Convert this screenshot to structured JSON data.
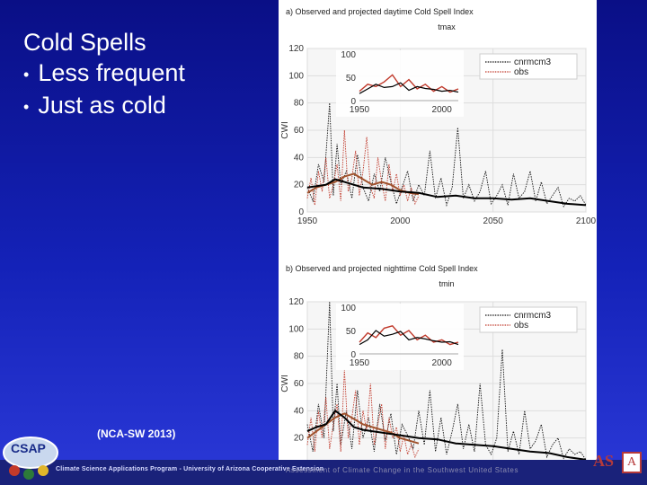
{
  "slide": {
    "title": "Cold Spells",
    "bullets": [
      "Less frequent",
      "Just as cold"
    ],
    "bullet_glyph": "•",
    "citation": "(NCA-SW 2013)",
    "footer_text": "Climate Science Applications Program - University of Arizona Cooperative Extension",
    "footer_overlay": "Assessment of Climate Change in the Southwest United States",
    "logo_text": "CSAP",
    "corner_logo_text": "AS",
    "corner_logo_box": "A"
  },
  "colors": {
    "background_top": "#0a0f86",
    "background_bottom": "#2b39d8",
    "model_series": "#111111",
    "obs_series": "#c0392b",
    "smooth_model": "#000000",
    "smooth_obs": "#a0522d"
  },
  "chart_data": [
    {
      "type": "line",
      "title": "a) Observed and projected daytime Cold Spell Index",
      "subtitle": "tmax",
      "ylabel": "CWI",
      "xlabel": "",
      "xlim": [
        1950,
        2100
      ],
      "ylim": [
        0,
        120
      ],
      "xticks": [
        1950,
        2000,
        2050,
        2100
      ],
      "yticks": [
        0,
        20,
        40,
        60,
        80,
        100,
        120
      ],
      "grid": true,
      "legend": "top-right",
      "series": [
        {
          "name": "cnrmcm3",
          "style": "dotted",
          "x": [
            1950,
            1953,
            1956,
            1959,
            1962,
            1964,
            1966,
            1968,
            1971,
            1974,
            1977,
            1980,
            1983,
            1986,
            1989,
            1992,
            1995,
            1998,
            2001,
            2004,
            2007,
            2010,
            2013,
            2016,
            2019,
            2022,
            2025,
            2028,
            2031,
            2034,
            2037,
            2040,
            2043,
            2046,
            2049,
            2052,
            2055,
            2058,
            2061,
            2064,
            2067,
            2070,
            2073,
            2076,
            2079,
            2082,
            2085,
            2088,
            2091,
            2094,
            2097,
            2100
          ],
          "y": [
            18,
            8,
            35,
            22,
            80,
            12,
            50,
            20,
            30,
            10,
            42,
            18,
            8,
            28,
            15,
            40,
            22,
            6,
            18,
            30,
            8,
            20,
            12,
            45,
            10,
            25,
            5,
            18,
            62,
            10,
            20,
            8,
            15,
            30,
            6,
            12,
            20,
            5,
            28,
            10,
            15,
            30,
            8,
            22,
            6,
            12,
            18,
            4,
            10,
            8,
            12,
            5
          ]
        },
        {
          "name": "obs",
          "style": "dotted",
          "x": [
            1950,
            1952,
            1954,
            1956,
            1958,
            1960,
            1962,
            1964,
            1966,
            1968,
            1970,
            1972,
            1974,
            1976,
            1978,
            1980,
            1982,
            1984,
            1986,
            1988,
            1990,
            1992,
            1994,
            1996,
            1998,
            2000,
            2002,
            2004,
            2006,
            2008,
            2010
          ],
          "y": [
            10,
            25,
            5,
            30,
            15,
            40,
            10,
            20,
            35,
            8,
            60,
            15,
            25,
            45,
            12,
            30,
            55,
            18,
            10,
            40,
            22,
            8,
            35,
            15,
            28,
            12,
            20,
            8,
            18,
            6,
            12
          ]
        }
      ],
      "smooth": [
        {
          "name": "cnrmcm3-smooth",
          "x": [
            1950,
            1960,
            1965,
            1970,
            1975,
            1980,
            1990,
            2000,
            2010,
            2020,
            2030,
            2040,
            2050,
            2060,
            2070,
            2080,
            2090,
            2100
          ],
          "y": [
            18,
            20,
            24,
            22,
            20,
            18,
            17,
            15,
            14,
            11,
            12,
            10,
            10,
            9,
            10,
            8,
            6,
            5
          ]
        },
        {
          "name": "obs-smooth",
          "x": [
            1950,
            1955,
            1960,
            1965,
            1970,
            1975,
            1980,
            1985,
            1990,
            1995,
            2000,
            2005,
            2010
          ],
          "y": [
            14,
            18,
            20,
            22,
            26,
            28,
            24,
            20,
            22,
            20,
            16,
            14,
            13
          ]
        }
      ],
      "inset": {
        "xlim": [
          1950,
          2010
        ],
        "ylim": [
          0,
          100
        ],
        "xticks": [
          1950,
          2000
        ],
        "yticks": [
          0,
          50,
          100
        ],
        "obs_x": [
          1950,
          1955,
          1960,
          1965,
          1970,
          1975,
          1980,
          1985,
          1990,
          1995,
          2000,
          2005,
          2010
        ],
        "obs_y": [
          20,
          35,
          30,
          40,
          55,
          30,
          45,
          25,
          35,
          20,
          30,
          18,
          25
        ],
        "model_x": [
          1950,
          1955,
          1960,
          1965,
          1970,
          1975,
          1980,
          1985,
          1990,
          1995,
          2000,
          2005,
          2010
        ],
        "model_y": [
          15,
          25,
          35,
          28,
          30,
          38,
          22,
          30,
          26,
          24,
          20,
          22,
          18
        ]
      }
    },
    {
      "type": "line",
      "title": "b) Observed and projected nighttime Cold Spell Index",
      "subtitle": "tmin",
      "ylabel": "CWI",
      "xlabel": "",
      "xlim": [
        1950,
        2100
      ],
      "ylim": [
        0,
        120
      ],
      "xticks": [
        1950,
        2000,
        2050,
        2100
      ],
      "yticks": [
        0,
        20,
        40,
        60,
        80,
        100,
        120
      ],
      "grid": true,
      "legend": "top-right",
      "series": [
        {
          "name": "cnrmcm3",
          "style": "dotted",
          "x": [
            1950,
            1953,
            1956,
            1959,
            1962,
            1964,
            1966,
            1968,
            1971,
            1974,
            1977,
            1980,
            1983,
            1986,
            1989,
            1992,
            1995,
            1998,
            2001,
            2004,
            2007,
            2010,
            2013,
            2016,
            2019,
            2022,
            2025,
            2028,
            2031,
            2034,
            2037,
            2040,
            2043,
            2046,
            2049,
            2052,
            2055,
            2058,
            2061,
            2064,
            2067,
            2070,
            2073,
            2076,
            2079,
            2082,
            2085,
            2088,
            2091,
            2094,
            2097,
            2100
          ],
          "y": [
            30,
            10,
            45,
            20,
            120,
            25,
            60,
            15,
            40,
            12,
            55,
            20,
            35,
            10,
            45,
            18,
            38,
            8,
            30,
            22,
            12,
            40,
            15,
            55,
            10,
            35,
            8,
            25,
            45,
            12,
            30,
            10,
            60,
            15,
            8,
            20,
            85,
            10,
            25,
            8,
            40,
            12,
            18,
            30,
            6,
            15,
            20,
            5,
            12,
            8,
            10,
            4
          ]
        },
        {
          "name": "obs",
          "style": "dotted",
          "x": [
            1950,
            1952,
            1954,
            1956,
            1958,
            1960,
            1962,
            1964,
            1966,
            1968,
            1970,
            1972,
            1974,
            1976,
            1978,
            1980,
            1982,
            1984,
            1986,
            1988,
            1990,
            1992,
            1994,
            1996,
            1998,
            2000,
            2002,
            2004,
            2006,
            2008,
            2010
          ],
          "y": [
            15,
            35,
            10,
            40,
            20,
            50,
            12,
            30,
            45,
            10,
            70,
            20,
            35,
            55,
            15,
            40,
            25,
            60,
            15,
            30,
            45,
            12,
            35,
            20,
            28,
            10,
            22,
            8,
            15,
            6,
            12
          ]
        }
      ],
      "smooth": [
        {
          "name": "cnrmcm3-smooth",
          "x": [
            1950,
            1955,
            1960,
            1965,
            1970,
            1975,
            1980,
            1990,
            2000,
            2010,
            2020,
            2030,
            2040,
            2050,
            2060,
            2070,
            2080,
            2090,
            2100
          ],
          "y": [
            25,
            28,
            30,
            40,
            35,
            28,
            26,
            24,
            22,
            20,
            19,
            16,
            15,
            14,
            12,
            10,
            9,
            6,
            4
          ]
        },
        {
          "name": "obs-smooth",
          "x": [
            1950,
            1955,
            1960,
            1965,
            1970,
            1975,
            1980,
            1985,
            1990,
            1995,
            2000,
            2005,
            2010
          ],
          "y": [
            20,
            25,
            30,
            35,
            38,
            34,
            30,
            28,
            26,
            24,
            20,
            18,
            16
          ]
        }
      ],
      "inset": {
        "xlim": [
          1950,
          2010
        ],
        "ylim": [
          0,
          100
        ],
        "xticks": [
          1950,
          2000
        ],
        "yticks": [
          0,
          50,
          100
        ],
        "obs_x": [
          1950,
          1955,
          1960,
          1965,
          1970,
          1975,
          1980,
          1985,
          1990,
          1995,
          2000,
          2005,
          2010
        ],
        "obs_y": [
          25,
          45,
          35,
          55,
          60,
          40,
          50,
          30,
          40,
          25,
          30,
          20,
          25
        ],
        "model_x": [
          1950,
          1955,
          1960,
          1965,
          1970,
          1975,
          1980,
          1985,
          1990,
          1995,
          2000,
          2005,
          2010
        ],
        "model_y": [
          20,
          30,
          50,
          38,
          42,
          48,
          30,
          35,
          32,
          28,
          25,
          26,
          20
        ]
      }
    }
  ]
}
